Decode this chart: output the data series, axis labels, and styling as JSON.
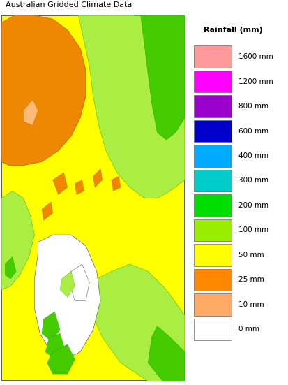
{
  "title": "Australian Gridded Climate Data",
  "legend_title": "Rainfall (mm)",
  "legend_labels": [
    "1600 mm",
    "1200 mm",
    "800 mm",
    "600 mm",
    "400 mm",
    "300 mm",
    "200 mm",
    "100 mm",
    "50 mm",
    "25 mm",
    "10 mm",
    "0 mm"
  ],
  "legend_colors": [
    "#FF9999",
    "#FF00FF",
    "#9900CC",
    "#0000CC",
    "#00AAFF",
    "#00CCCC",
    "#00DD00",
    "#99EE00",
    "#FFFF00",
    "#FF8800",
    "#FFAA66",
    "#FFFFFF"
  ],
  "fig_width": 4.14,
  "fig_height": 5.51,
  "dpi": 100,
  "outer_bg": "#FFFFFF",
  "map_border": "#444444",
  "title_fontsize": 8,
  "legend_fontsize": 7.5
}
